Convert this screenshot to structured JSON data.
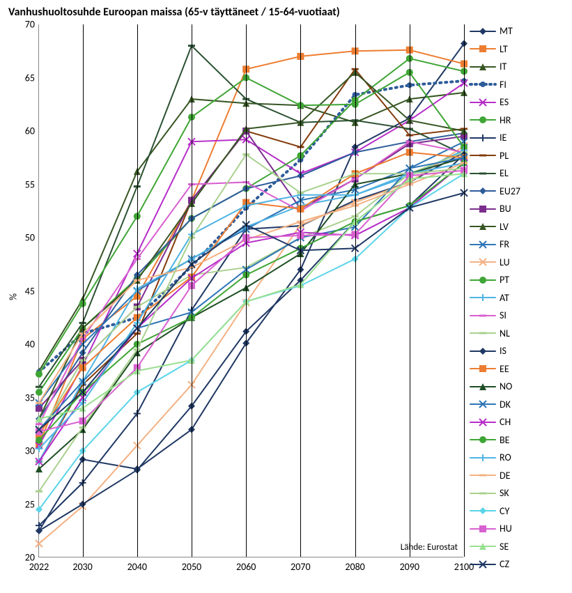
{
  "chart": {
    "type": "line",
    "title": "Vanhushuoltosuhde Euroopan maissa (65-v täyttäneet / 15-64-vuotiaat)",
    "title_fontsize": 16,
    "ylabel": "%",
    "label_fontsize": 14,
    "background_color": "#ffffff",
    "grid_color": "#000000",
    "source_note": "Lähde: Eurostat",
    "x_values": [
      2022,
      2030,
      2040,
      2050,
      2060,
      2070,
      2080,
      2090,
      2100
    ],
    "ylim": [
      20,
      70
    ],
    "ytick_step": 5,
    "yticks": [
      20,
      25,
      30,
      35,
      40,
      45,
      50,
      55,
      60,
      65,
      70
    ],
    "tick_fontsize": 14,
    "line_width": 2,
    "marker_size": 5,
    "series": [
      {
        "label": "MT",
        "color": "#203864",
        "marker": "diamond",
        "dash": "solid",
        "values": [
          22.5,
          29.2,
          28.3,
          32.0,
          40.1,
          47.0,
          58.5,
          61.2,
          68.2
        ]
      },
      {
        "label": "LT",
        "color": "#ed7d31",
        "marker": "square",
        "dash": "solid",
        "values": [
          30.6,
          40.5,
          44.5,
          53.5,
          65.8,
          67.0,
          67.5,
          67.6,
          66.3
        ]
      },
      {
        "label": "IT",
        "color": "#375623",
        "marker": "triangle",
        "dash": "solid",
        "values": [
          37.5,
          44.2,
          56.2,
          63.0,
          62.6,
          62.4,
          60.8,
          63.0,
          63.6
        ]
      },
      {
        "label": "FI",
        "color": "#2e5c9a",
        "marker": "dot",
        "dash": "dotted",
        "values": [
          37.4,
          41.0,
          42.5,
          47.3,
          52.8,
          57.3,
          63.4,
          64.3,
          64.7
        ]
      },
      {
        "label": "ES",
        "color": "#b52dc8",
        "marker": "x",
        "dash": "solid",
        "values": [
          30.5,
          38.0,
          48.5,
          59.0,
          59.2,
          56.0,
          58.0,
          61.0,
          64.5
        ]
      },
      {
        "label": "HR",
        "color": "#3fa535",
        "marker": "circle",
        "dash": "solid",
        "values": [
          35.5,
          41.5,
          46.2,
          51.8,
          54.6,
          57.7,
          62.9,
          66.8,
          65.6
        ]
      },
      {
        "label": "IE",
        "color": "#1f3864",
        "marker": "plus",
        "dash": "solid",
        "values": [
          23.0,
          27.0,
          33.5,
          43.2,
          50.8,
          51.1,
          53.5,
          55.2,
          58.0
        ]
      },
      {
        "label": "PL",
        "color": "#833c0c",
        "marker": "dash",
        "dash": "solid",
        "values": [
          29.0,
          36.2,
          41.0,
          53.5,
          60.0,
          58.5,
          65.8,
          59.6,
          60.2
        ]
      },
      {
        "label": "EL",
        "color": "#2b5131",
        "marker": "dash",
        "dash": "solid",
        "values": [
          36.0,
          42.0,
          54.8,
          68.0,
          63.0,
          60.8,
          61.0,
          60.2,
          57.8
        ]
      },
      {
        "label": "EU27",
        "color": "#2e5c9a",
        "marker": "diamond",
        "dash": "solid",
        "values": [
          33.0,
          39.2,
          46.5,
          51.8,
          54.6,
          55.8,
          58.0,
          59.0,
          59.8
        ]
      },
      {
        "label": "BU",
        "color": "#7b2d8e",
        "marker": "square",
        "dash": "solid",
        "values": [
          34.0,
          38.5,
          43.5,
          53.5,
          60.0,
          52.7,
          55.5,
          58.8,
          59.5
        ]
      },
      {
        "label": "LV",
        "color": "#375623",
        "marker": "triangle",
        "dash": "solid",
        "values": [
          33.0,
          41.5,
          46.0,
          53.2,
          60.2,
          60.8,
          65.5,
          61.0,
          60.0
        ]
      },
      {
        "label": "FR",
        "color": "#2e75b6",
        "marker": "x",
        "dash": "solid",
        "values": [
          34.5,
          40.0,
          45.0,
          48.0,
          50.8,
          53.5,
          54.5,
          56.5,
          59.0
        ]
      },
      {
        "label": "LU",
        "color": "#f4b183",
        "marker": "x",
        "dash": "solid",
        "values": [
          21.3,
          24.8,
          30.5,
          36.2,
          43.9,
          51.2,
          53.3,
          55.2,
          58.6
        ]
      },
      {
        "label": "PT",
        "color": "#3fa535",
        "marker": "circle",
        "dash": "solid",
        "values": [
          37.2,
          43.8,
          52.0,
          61.3,
          65.0,
          62.4,
          62.5,
          65.5,
          58.5
        ]
      },
      {
        "label": "AT",
        "color": "#4eb3e3",
        "marker": "plus",
        "dash": "solid",
        "values": [
          29.0,
          36.5,
          45.2,
          48.0,
          51.0,
          53.0,
          54.0,
          55.8,
          58.2
        ]
      },
      {
        "label": "SI",
        "color": "#d860d0",
        "marker": "dash",
        "dash": "solid",
        "values": [
          32.5,
          40.5,
          48.0,
          55.0,
          55.2,
          52.5,
          55.5,
          59.0,
          58.0
        ]
      },
      {
        "label": "NL",
        "color": "#a9d18e",
        "marker": "dash",
        "dash": "solid",
        "values": [
          31.5,
          38.5,
          43.5,
          46.5,
          47.2,
          50.0,
          52.0,
          56.0,
          58.0
        ]
      },
      {
        "label": "IS",
        "color": "#1f3864",
        "marker": "diamond",
        "dash": "solid",
        "values": [
          22.5,
          25.0,
          28.2,
          34.2,
          41.2,
          46.0,
          51.5,
          53.0,
          57.8
        ]
      },
      {
        "label": "EE",
        "color": "#ed7d31",
        "marker": "square",
        "dash": "solid",
        "values": [
          31.5,
          37.8,
          42.5,
          46.3,
          53.3,
          52.7,
          56.0,
          58.0,
          57.5
        ]
      },
      {
        "label": "NO",
        "color": "#1e4e24",
        "marker": "triangle",
        "dash": "solid",
        "values": [
          28.3,
          32.0,
          39.2,
          42.5,
          45.3,
          48.5,
          55.0,
          56.0,
          57.5
        ]
      },
      {
        "label": "DK",
        "color": "#2e75b6",
        "marker": "x",
        "dash": "solid",
        "values": [
          32.0,
          36.5,
          41.5,
          43.0,
          47.0,
          50.0,
          51.0,
          56.5,
          57.5
        ]
      },
      {
        "label": "CH",
        "color": "#b52dc8",
        "marker": "x",
        "dash": "solid",
        "values": [
          29.0,
          35.0,
          41.5,
          46.2,
          49.5,
          50.5,
          50.2,
          52.8,
          57.0
        ]
      },
      {
        "label": "BE",
        "color": "#3fa535",
        "marker": "circle",
        "dash": "solid",
        "values": [
          31.0,
          35.5,
          40.0,
          42.5,
          46.5,
          49.0,
          51.5,
          53.0,
          57.0
        ]
      },
      {
        "label": "RO",
        "color": "#4eb3e3",
        "marker": "plus",
        "dash": "solid",
        "values": [
          30.2,
          34.5,
          42.0,
          50.3,
          53.0,
          54.0,
          54.0,
          56.0,
          57.0
        ]
      },
      {
        "label": "DE",
        "color": "#f4b183",
        "marker": "dash",
        "dash": "solid",
        "values": [
          34.5,
          41.0,
          46.0,
          47.2,
          49.8,
          51.5,
          53.0,
          55.0,
          57.0
        ]
      },
      {
        "label": "SK",
        "color": "#a9d18e",
        "marker": "dash",
        "dash": "solid",
        "values": [
          26.2,
          32.2,
          39.5,
          50.0,
          57.8,
          54.2,
          56.0,
          56.0,
          56.5
        ]
      },
      {
        "label": "CY",
        "color": "#5bd4e8",
        "marker": "diamond",
        "dash": "solid",
        "values": [
          24.5,
          30.0,
          35.5,
          38.5,
          44.0,
          45.5,
          48.0,
          52.8,
          56.0
        ]
      },
      {
        "label": "HU",
        "color": "#d860d0",
        "marker": "square",
        "dash": "solid",
        "values": [
          31.8,
          32.8,
          37.8,
          45.5,
          50.0,
          50.2,
          50.3,
          55.8,
          56.3
        ]
      },
      {
        "label": "SE",
        "color": "#99e090",
        "marker": "triangle",
        "dash": "solid",
        "values": [
          33.0,
          34.0,
          37.5,
          38.5,
          44.0,
          45.6,
          51.5,
          55.5,
          56.0
        ]
      },
      {
        "label": "CZ",
        "color": "#1f3864",
        "marker": "x",
        "dash": "solid",
        "values": [
          32.0,
          35.5,
          41.5,
          47.5,
          51.2,
          48.8,
          49.0,
          52.8,
          54.2
        ]
      }
    ]
  }
}
